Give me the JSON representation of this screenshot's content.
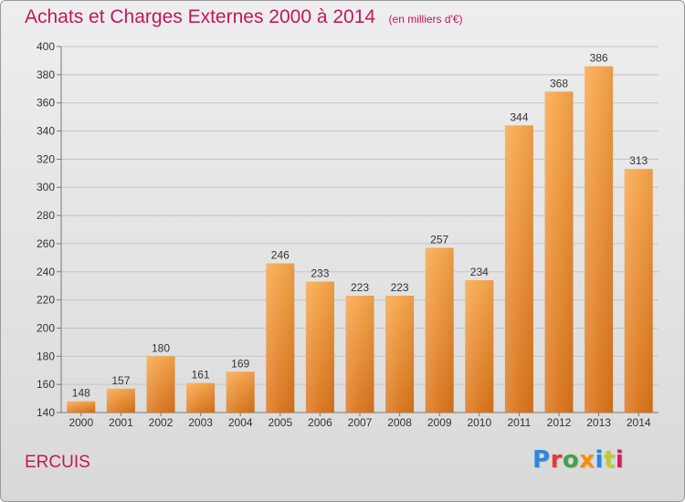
{
  "header": {
    "title": "Achats et Charges Externes 2000 à 2014",
    "subtitle": "(en milliers d'€)"
  },
  "footer": {
    "place": "ERCUIS",
    "logo_text": "Proxiti",
    "logo_colors": [
      "#2e86de",
      "#e53935",
      "#43a047",
      "#fb8c00",
      "#1e88e5",
      "#c0ca33",
      "#d81b60"
    ]
  },
  "colors": {
    "title": "#c2185b",
    "bar_light": "#f7a54a",
    "bar_dark": "#d9731a"
  },
  "chart_data": {
    "type": "bar",
    "title": "Achats et Charges Externes 2000 à 2014",
    "subtitle": "(en milliers d'€)",
    "categories": [
      "2000",
      "2001",
      "2002",
      "2003",
      "2004",
      "2005",
      "2006",
      "2007",
      "2008",
      "2009",
      "2010",
      "2011",
      "2012",
      "2013",
      "2014"
    ],
    "values": [
      148,
      157,
      180,
      161,
      169,
      246,
      233,
      223,
      223,
      257,
      234,
      344,
      368,
      386,
      313
    ],
    "ylim": [
      140,
      400
    ],
    "yticks": [
      140,
      160,
      180,
      200,
      220,
      240,
      260,
      280,
      300,
      320,
      340,
      360,
      380,
      400
    ],
    "grid": true,
    "data_labels": true,
    "xlabel": "",
    "ylabel": ""
  }
}
